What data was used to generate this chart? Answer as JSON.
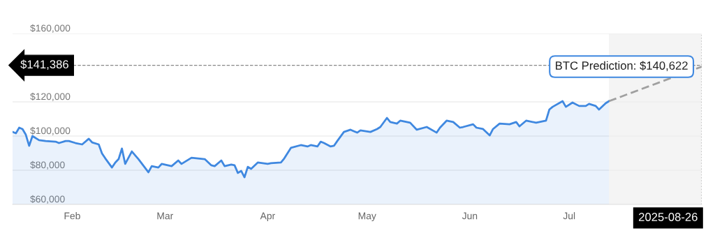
{
  "chart_data": {
    "type": "area",
    "x": [
      "2025-01-30",
      "2025-01-31",
      "2025-02-01",
      "2025-02-02",
      "2025-02-03",
      "2025-02-04",
      "2025-02-05",
      "2025-02-07",
      "2025-02-09",
      "2025-02-12",
      "2025-02-13",
      "2025-02-15",
      "2025-02-16",
      "2025-02-18",
      "2025-02-20",
      "2025-02-22",
      "2025-02-23",
      "2025-02-25",
      "2025-02-26",
      "2025-02-27",
      "2025-03-01",
      "2025-03-02",
      "2025-03-03",
      "2025-03-04",
      "2025-03-05",
      "2025-03-07",
      "2025-03-09",
      "2025-03-12",
      "2025-03-13",
      "2025-03-15",
      "2025-03-16",
      "2025-03-19",
      "2025-03-21",
      "2025-03-22",
      "2025-03-25",
      "2025-03-29",
      "2025-03-31",
      "2025-04-01",
      "2025-04-03",
      "2025-04-04",
      "2025-04-06",
      "2025-04-07",
      "2025-04-08",
      "2025-04-09",
      "2025-04-10",
      "2025-04-11",
      "2025-04-12",
      "2025-04-14",
      "2025-04-17",
      "2025-04-18",
      "2025-04-21",
      "2025-04-22",
      "2025-04-24",
      "2025-04-27",
      "2025-04-29",
      "2025-04-30",
      "2025-05-02",
      "2025-05-03",
      "2025-05-04",
      "2025-05-06",
      "2025-05-07",
      "2025-05-08",
      "2025-05-10",
      "2025-05-12",
      "2025-05-14",
      "2025-05-15",
      "2025-05-18",
      "2025-05-20",
      "2025-05-21",
      "2025-05-23",
      "2025-05-24",
      "2025-05-26",
      "2025-05-27",
      "2025-05-30",
      "2025-06-01",
      "2025-06-04",
      "2025-06-07",
      "2025-06-08",
      "2025-06-10",
      "2025-06-12",
      "2025-06-14",
      "2025-06-15",
      "2025-06-18",
      "2025-06-19",
      "2025-06-21",
      "2025-06-23",
      "2025-06-24",
      "2025-06-26",
      "2025-06-29",
      "2025-07-01",
      "2025-07-02",
      "2025-07-04",
      "2025-07-07",
      "2025-07-10",
      "2025-07-11",
      "2025-07-12",
      "2025-07-15",
      "2025-07-16",
      "2025-07-18",
      "2025-07-20",
      "2025-07-22",
      "2025-07-23",
      "2025-07-25",
      "2025-07-26",
      "2025-07-28",
      "2025-07-29"
    ],
    "series": [
      {
        "color": "#3f88e0",
        "values": [
          102400,
          101600,
          104900,
          104100,
          100800,
          94300,
          100000,
          97600,
          97100,
          96700,
          95900,
          97100,
          97100,
          95900,
          95100,
          98400,
          96300,
          95100,
          89800,
          86900,
          81600,
          84500,
          86500,
          92700,
          83700,
          91000,
          86500,
          78800,
          82400,
          81600,
          83700,
          82400,
          85700,
          83700,
          87300,
          86500,
          82900,
          82400,
          85700,
          82400,
          83300,
          82900,
          78400,
          79600,
          75900,
          82000,
          80800,
          84500,
          83700,
          84100,
          84500,
          86900,
          93100,
          94700,
          93900,
          94700,
          93900,
          96700,
          95900,
          93900,
          94300,
          97100,
          102400,
          103700,
          102000,
          103300,
          102400,
          104100,
          105300,
          110600,
          108200,
          107300,
          109000,
          107800,
          103700,
          105300,
          102000,
          104900,
          109000,
          108200,
          104900,
          105300,
          106900,
          104900,
          104100,
          100400,
          104100,
          107300,
          106900,
          108200,
          105700,
          109000,
          107800,
          109000,
          115500,
          117100,
          120400,
          117100,
          119600,
          117600,
          117600,
          118800,
          117600,
          115500,
          119200,
          120400
        ]
      },
      {
        "type": "line",
        "color": "#a0a0a0",
        "line_style": "dashed",
        "x": [
          "2025-07-29",
          "2025-08-26"
        ],
        "values": [
          120400,
          140622
        ]
      }
    ],
    "xlim": [
      "2025-01-30",
      "2025-08-26"
    ],
    "xticks": [
      {
        "value": "2025-02-17",
        "label": "Feb"
      },
      {
        "value": "2025-03-17",
        "label": "Mar"
      },
      {
        "value": "2025-04-17",
        "label": "Apr"
      },
      {
        "value": "2025-05-17",
        "label": "May"
      },
      {
        "value": "2025-06-17",
        "label": "Jun"
      },
      {
        "value": "2025-07-17",
        "label": "Jul"
      }
    ],
    "ylim": [
      60000,
      160000
    ],
    "yticks": [
      {
        "value": 60000,
        "label": "$60,000"
      },
      {
        "value": 80000,
        "label": "$80,000"
      },
      {
        "value": 100000,
        "label": "$100,000"
      },
      {
        "value": 120000,
        "label": "$120,000"
      },
      {
        "value": 160000,
        "label": "$160,000"
      }
    ],
    "grid": "y",
    "ref_lines": [
      {
        "axis": "y",
        "value": 141386,
        "label": "$141,386",
        "color": "#888888",
        "line_style": "dashed"
      },
      {
        "axis": "x",
        "value": "2025-08-26",
        "label": "2025-08-26",
        "color": "#aaaaaa",
        "line_style": "dotted"
      }
    ],
    "bands": [
      {
        "axis": "x",
        "from": "2025-07-29",
        "to": "2025-08-26",
        "color": "#f4f4f4"
      }
    ],
    "annotations": [
      {
        "text": "BTC Prediction: $140,622",
        "x": "2025-08-26",
        "y": 140622
      }
    ]
  }
}
